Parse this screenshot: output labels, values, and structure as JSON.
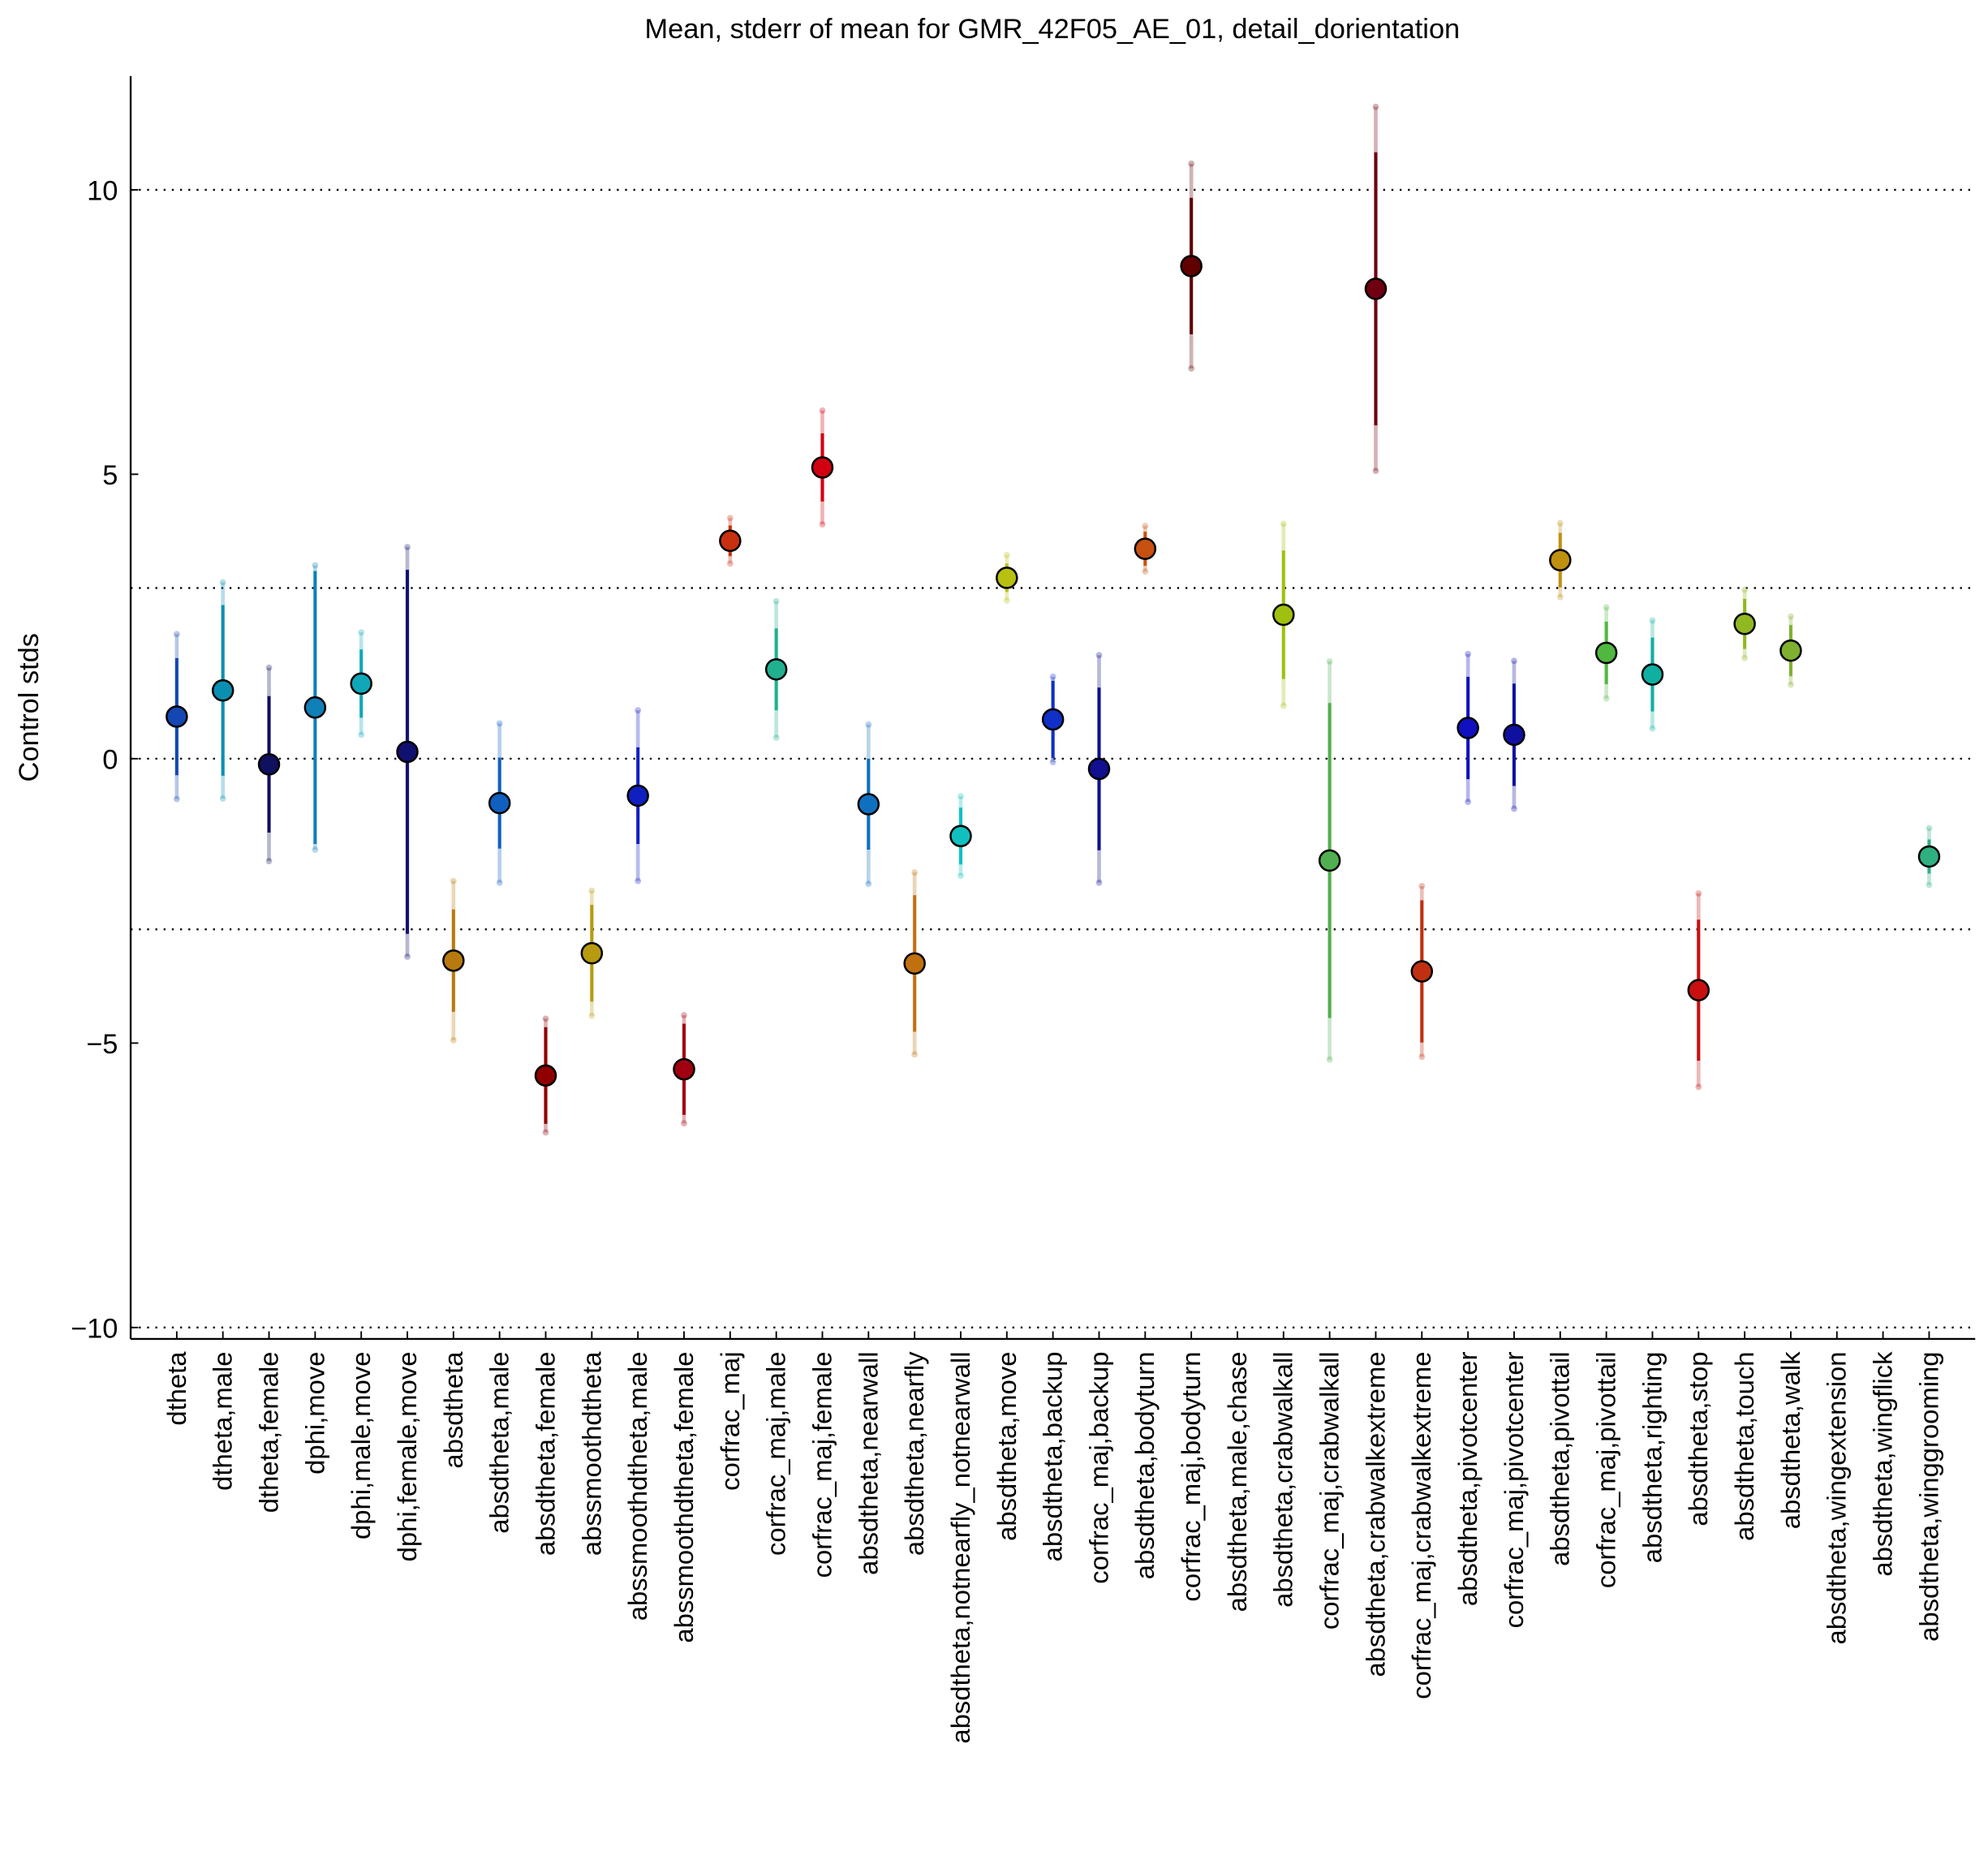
{
  "chart_data": {
    "type": "errorbar",
    "title": "Mean, stderr of mean for GMR_42F05_AE_01, detail_dorientation",
    "ylabel": "Control stds",
    "categories": [
      "dtheta",
      "dtheta,male",
      "dtheta,female",
      "dphi,move",
      "dphi,male,move",
      "dphi,female,move",
      "absdtheta",
      "absdtheta,male",
      "absdtheta,female",
      "abssmoothdtheta",
      "abssmoothdtheta,male",
      "abssmoothdtheta,female",
      "corfrac_maj",
      "corfrac_maj,male",
      "corfrac_maj,female",
      "absdtheta,nearwall",
      "absdtheta,nearfly",
      "absdtheta,notnearfly_notnearwall",
      "absdtheta,move",
      "absdtheta,backup",
      "corfrac_maj,backup",
      "absdtheta,bodyturn",
      "corfrac_maj,bodyturn",
      "absdtheta,male,chase",
      "absdtheta,crabwalkall",
      "corfrac_maj,crabwalkall",
      "absdtheta,crabwalkextreme",
      "corfrac_maj,crabwalkextreme",
      "absdtheta,pivotcenter",
      "corfrac_maj,pivotcenter",
      "absdtheta,pivottail",
      "corfrac_maj,pivottail",
      "absdtheta,righting",
      "absdtheta,stop",
      "absdtheta,touch",
      "absdtheta,walk",
      "absdtheta,wingextension",
      "absdtheta,wingflick",
      "absdtheta,winggrooming"
    ],
    "values": [
      0.74,
      1.2,
      -0.1,
      0.9,
      1.32,
      0.12,
      -3.55,
      -0.78,
      -5.57,
      -3.42,
      -0.65,
      -5.46,
      3.83,
      1.57,
      5.12,
      -0.8,
      -3.6,
      -1.36,
      3.18,
      0.69,
      -0.18,
      3.69,
      8.66,
      null,
      2.53,
      -1.79,
      8.26,
      -3.74,
      0.54,
      0.42,
      3.49,
      1.86,
      1.48,
      -4.07,
      2.37,
      1.9,
      null,
      null,
      -1.72
    ],
    "errors": [
      1.03,
      1.5,
      1.2,
      2.4,
      0.6,
      3.2,
      0.9,
      0.8,
      0.85,
      0.85,
      0.85,
      0.8,
      0.27,
      0.72,
      0.6,
      0.8,
      1.2,
      0.5,
      0.25,
      0.68,
      1.43,
      0.3,
      1.2,
      null,
      1.13,
      2.77,
      2.4,
      1.25,
      0.9,
      0.9,
      0.48,
      0.55,
      0.65,
      1.24,
      0.44,
      0.45,
      null,
      null,
      0.3
    ],
    "spread": [
      1.45,
      1.9,
      1.7,
      2.5,
      0.9,
      3.6,
      1.4,
      1.4,
      1.0,
      1.1,
      1.5,
      0.95,
      0.4,
      1.2,
      1.0,
      1.4,
      1.6,
      0.7,
      0.4,
      0.75,
      2.0,
      0.4,
      1.8,
      null,
      1.6,
      3.5,
      3.2,
      1.5,
      1.3,
      1.3,
      0.65,
      0.8,
      0.95,
      1.7,
      0.6,
      0.6,
      null,
      null,
      0.5
    ],
    "colors": [
      "#1446b4",
      "#0a8fb0",
      "#101060",
      "#1080b8",
      "#10a8b8",
      "#101070",
      "#b87a10",
      "#1060c0",
      "#900000",
      "#b89a10",
      "#1020c0",
      "#a00010",
      "#c83010",
      "#20b090",
      "#d00010",
      "#1070c0",
      "#c07010",
      "#10c0c0",
      "#b8c010",
      "#1030c8",
      "#101090",
      "#c85010",
      "#600000",
      "#909090",
      "#a0c010",
      "#50b050",
      "#700010",
      "#c03010",
      "#1010c0",
      "#1010a0",
      "#c09010",
      "#50b840",
      "#10b0a0",
      "#c81010",
      "#90b820",
      "#80b030",
      "#909090",
      "#909090",
      "#30b080"
    ],
    "ylim": [
      -10.2,
      12
    ],
    "yticks": [
      10,
      5,
      0,
      -5,
      -10
    ],
    "ylabels": [
      {
        "value": 10,
        "label": "10"
      },
      {
        "value": 5,
        "label": "5"
      },
      {
        "value": 0,
        "label": "0"
      },
      {
        "value": -5,
        "label": "−5"
      },
      {
        "value": -10,
        "label": "−10"
      }
    ],
    "hlines": [
      10,
      3,
      0,
      -3,
      -10
    ]
  }
}
